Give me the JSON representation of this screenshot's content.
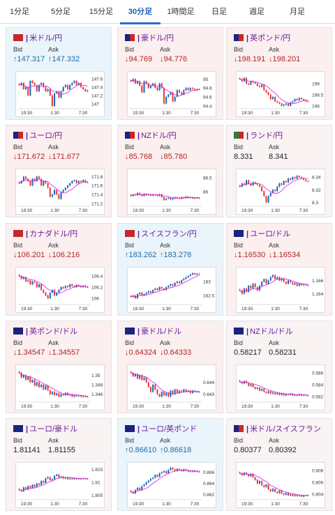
{
  "tabs": [
    "1分足",
    "5分足",
    "15分足",
    "30分足",
    "1時間足",
    "日足",
    "週足",
    "月足"
  ],
  "active_tab": 3,
  "bid_label": "Bid",
  "ask_label": "Ask",
  "colors": {
    "up": "#1a6fa8",
    "down": "#b3261e",
    "bull": "#1565c0",
    "bear": "#e53935",
    "ma": "#d81bd8",
    "tab_active": "#2a6fc9"
  },
  "cards": [
    {
      "pair": "米ドル/円",
      "bid": "147.317",
      "ask": "147.332",
      "dir": "up",
      "flags": [
        "#c62828",
        "#c62828"
      ],
      "chart_data": {
        "type": "candlestick",
        "x_labels": [
          "19:30",
          "1:30",
          "7:30"
        ],
        "y_ticks": [
          "147.6",
          "147.4",
          "147.2",
          "147"
        ],
        "ylim": [
          146.9,
          147.7
        ],
        "closes": [
          147.45,
          147.5,
          147.35,
          147.4,
          147.2,
          147.55,
          147.5,
          147.45,
          147.3,
          147.45,
          147.5,
          147.4,
          147.3,
          147.35,
          147.2,
          146.95,
          147.25,
          147.3,
          147.15,
          147.3,
          147.4,
          147.45,
          147.35,
          147.45,
          147.5,
          147.55,
          147.45,
          147.5,
          147.4,
          147.35,
          147.3,
          147.32
        ]
      }
    },
    {
      "pair": "豪ドル/円",
      "bid": "94.769",
      "ask": "94.776",
      "dir": "down",
      "flags": [
        "#1a237e",
        "#c62828"
      ],
      "chart_data": {
        "type": "candlestick",
        "x_labels": [
          "19:30",
          "1:30",
          "7:30"
        ],
        "y_ticks": [
          "95",
          "94.8",
          "94.6",
          "94.4"
        ],
        "ylim": [
          94.35,
          95.1
        ],
        "closes": [
          94.95,
          95.0,
          94.9,
          94.95,
          94.85,
          94.7,
          94.95,
          94.9,
          94.8,
          94.85,
          94.9,
          94.8,
          94.75,
          94.9,
          94.8,
          94.45,
          94.6,
          94.65,
          94.7,
          94.5,
          94.6,
          94.75,
          94.7,
          94.65,
          94.75,
          94.8,
          94.75,
          94.8,
          94.78,
          94.75,
          94.77,
          94.77
        ]
      }
    },
    {
      "pair": "英ポンド/円",
      "bid": "198.191",
      "ask": "198.201",
      "dir": "down",
      "flags": [
        "#1a237e",
        "#c62828"
      ],
      "chart_data": {
        "type": "candlestick",
        "x_labels": [
          "19:30",
          "1:30",
          "7:30"
        ],
        "y_ticks": [
          "199",
          "198.5",
          "198"
        ],
        "ylim": [
          197.9,
          199.4
        ],
        "closes": [
          199.2,
          199.1,
          199.25,
          199.0,
          198.95,
          199.1,
          199.05,
          199.0,
          198.9,
          198.85,
          198.95,
          198.7,
          198.6,
          198.5,
          198.3,
          198.4,
          198.2,
          198.15,
          198.1,
          198.0,
          198.05,
          198.1,
          198.0,
          198.15,
          198.2,
          198.3,
          198.25,
          198.35,
          198.3,
          198.25,
          198.2,
          198.19
        ]
      }
    },
    {
      "pair": "ユーロ/円",
      "bid": "171.672",
      "ask": "171.677",
      "dir": "down",
      "flags": [
        "#1a237e",
        "#c62828"
      ],
      "chart_data": {
        "type": "candlestick",
        "x_labels": [
          "19:30",
          "1:30",
          "7:30"
        ],
        "y_ticks": [
          "171.8",
          "171.6",
          "171.4",
          "171.2"
        ],
        "ylim": [
          171.15,
          171.9
        ],
        "closes": [
          171.65,
          171.7,
          171.8,
          171.75,
          171.7,
          171.6,
          171.75,
          171.7,
          171.8,
          171.75,
          171.6,
          171.7,
          171.65,
          171.55,
          171.35,
          171.4,
          171.5,
          171.4,
          171.3,
          171.45,
          171.5,
          171.55,
          171.6,
          171.65,
          171.7,
          171.72,
          171.65,
          171.7,
          171.68,
          171.72,
          171.67,
          171.67
        ]
      }
    },
    {
      "pair": "NZドル/円",
      "bid": "85.768",
      "ask": "85.780",
      "dir": "down",
      "flags": [
        "#1a237e",
        "#c62828"
      ],
      "chart_data": {
        "type": "candlestick",
        "x_labels": [
          "19:30",
          "1:30",
          "7:30"
        ],
        "y_ticks": [
          "86.5",
          "86"
        ],
        "ylim": [
          85.5,
          86.7
        ],
        "closes": [
          85.85,
          85.9,
          85.88,
          85.95,
          85.9,
          85.85,
          85.92,
          85.88,
          85.9,
          85.86,
          85.9,
          85.88,
          85.85,
          85.9,
          85.8,
          85.7,
          85.75,
          85.78,
          85.72,
          85.76,
          85.8,
          85.78,
          85.75,
          85.8,
          85.78,
          85.82,
          85.78,
          85.8,
          85.76,
          85.78,
          85.77,
          85.77
        ]
      }
    },
    {
      "pair": "ランド/円",
      "bid": "8.331",
      "ask": "8.341",
      "dir": "flat",
      "flags": [
        "#2e7d32",
        "#c62828"
      ],
      "chart_data": {
        "type": "candlestick",
        "x_labels": [
          "19:30",
          "1:30",
          "7:30"
        ],
        "y_ticks": [
          "8.34",
          "8.32",
          "8.3"
        ],
        "ylim": [
          8.295,
          8.348
        ],
        "closes": [
          8.325,
          8.33,
          8.328,
          8.335,
          8.33,
          8.327,
          8.332,
          8.33,
          8.328,
          8.325,
          8.318,
          8.31,
          8.3,
          8.31,
          8.315,
          8.32,
          8.318,
          8.325,
          8.33,
          8.328,
          8.334,
          8.332,
          8.338,
          8.336,
          8.34,
          8.338,
          8.342,
          8.34,
          8.338,
          8.336,
          8.334,
          8.333
        ]
      }
    },
    {
      "pair": "カナダドル/円",
      "bid": "106.201",
      "ask": "106.216",
      "dir": "down",
      "flags": [
        "#c62828",
        "#c62828"
      ],
      "chart_data": {
        "type": "candlestick",
        "x_labels": [
          "19:30",
          "1:30",
          "7:30"
        ],
        "y_ticks": [
          "106.4",
          "106.2",
          "106"
        ],
        "ylim": [
          105.9,
          106.5
        ],
        "closes": [
          106.4,
          106.35,
          106.38,
          106.3,
          106.32,
          106.25,
          106.3,
          106.28,
          106.2,
          106.25,
          106.15,
          106.1,
          106.05,
          106.0,
          106.1,
          106.15,
          106.05,
          106.1,
          106.15,
          106.2,
          106.18,
          106.22,
          106.2,
          106.25,
          106.22,
          106.2,
          106.24,
          106.22,
          106.2,
          106.22,
          106.2,
          106.2
        ]
      }
    },
    {
      "pair": "スイスフラン/円",
      "bid": "183.262",
      "ask": "183.278",
      "dir": "up",
      "flags": [
        "#c62828",
        "#c62828"
      ],
      "chart_data": {
        "type": "candlestick",
        "x_labels": [
          "19:30",
          "1:30",
          "7:30"
        ],
        "y_ticks": [
          "183",
          "182.5"
        ],
        "ylim": [
          182.2,
          183.4
        ],
        "closes": [
          182.45,
          182.5,
          182.4,
          182.55,
          182.6,
          182.5,
          182.55,
          182.6,
          182.65,
          182.6,
          182.7,
          182.75,
          182.7,
          182.8,
          182.75,
          182.7,
          182.8,
          182.85,
          182.9,
          182.85,
          182.95,
          183.0,
          182.95,
          183.05,
          183.1,
          183.15,
          183.2,
          183.25,
          183.3,
          183.25,
          183.28,
          183.26
        ]
      }
    },
    {
      "pair": "ユーロ/ドル",
      "bid": "1.16530",
      "ask": "1.16534",
      "dir": "down",
      "flags": [
        "#1a237e",
        "#1a237e"
      ],
      "chart_data": {
        "type": "candlestick",
        "x_labels": [
          "19:30",
          "1:30",
          "7:30"
        ],
        "y_ticks": [
          "1.166",
          "1.164"
        ],
        "ylim": [
          1.1625,
          1.1675
        ],
        "closes": [
          1.1645,
          1.164,
          1.1648,
          1.1643,
          1.1652,
          1.1648,
          1.1655,
          1.165,
          1.1645,
          1.1652,
          1.1658,
          1.1662,
          1.1655,
          1.166,
          1.1665,
          1.1668,
          1.1662,
          1.1665,
          1.166,
          1.1663,
          1.1658,
          1.1655,
          1.166,
          1.1657,
          1.1654,
          1.1656,
          1.1652,
          1.1655,
          1.1653,
          1.1654,
          1.1653,
          1.1653
        ]
      }
    },
    {
      "pair": "英ポンド/ドル",
      "bid": "1.34547",
      "ask": "1.34557",
      "dir": "down",
      "flags": [
        "#1a237e",
        "#1a237e"
      ],
      "chart_data": {
        "type": "candlestick",
        "x_labels": [
          "19:30",
          "1:30",
          "7:30"
        ],
        "y_ticks": [
          "1.35",
          "1.348",
          "1.346"
        ],
        "ylim": [
          1.3445,
          1.3515
        ],
        "closes": [
          1.3505,
          1.3495,
          1.35,
          1.349,
          1.3497,
          1.3485,
          1.349,
          1.3478,
          1.3485,
          1.3475,
          1.348,
          1.347,
          1.3478,
          1.3468,
          1.346,
          1.3465,
          1.3458,
          1.3462,
          1.3455,
          1.346,
          1.3458,
          1.3463,
          1.3458,
          1.346,
          1.3455,
          1.3458,
          1.3456,
          1.3457,
          1.3455,
          1.3456,
          1.3455,
          1.3455
        ]
      }
    },
    {
      "pair": "豪ドル/ドル",
      "bid": "0.64324",
      "ask": "0.64333",
      "dir": "down",
      "flags": [
        "#1a237e",
        "#1a237e"
      ],
      "chart_data": {
        "type": "candlestick",
        "x_labels": [
          "19:30",
          "1:30",
          "7:30"
        ],
        "y_ticks": [
          "0.644",
          "0.643"
        ],
        "ylim": [
          0.6424,
          0.6452
        ],
        "closes": [
          0.6448,
          0.6445,
          0.6447,
          0.6443,
          0.6446,
          0.6442,
          0.6444,
          0.644,
          0.6436,
          0.6432,
          0.6438,
          0.6434,
          0.643,
          0.6428,
          0.6432,
          0.6429,
          0.6431,
          0.6428,
          0.6433,
          0.643,
          0.6434,
          0.6431,
          0.6433,
          0.6432,
          0.6434,
          0.6432,
          0.6433,
          0.6431,
          0.6433,
          0.6432,
          0.6432,
          0.6432
        ]
      }
    },
    {
      "pair": "NZドル/ドル",
      "bid": "0.58217",
      "ask": "0.58231",
      "dir": "flat",
      "flags": [
        "#1a237e",
        "#1a237e"
      ],
      "chart_data": {
        "type": "candlestick",
        "x_labels": [
          "19:30",
          "1:30",
          "7:30"
        ],
        "y_ticks": [
          "0.586",
          "0.584",
          "0.582"
        ],
        "ylim": [
          0.5812,
          0.5868
        ],
        "closes": [
          0.5845,
          0.5842,
          0.5846,
          0.5843,
          0.5838,
          0.5841,
          0.5836,
          0.5833,
          0.5835,
          0.583,
          0.5833,
          0.5828,
          0.5826,
          0.5829,
          0.5825,
          0.5827,
          0.5824,
          0.5826,
          0.5823,
          0.5825,
          0.5822,
          0.5824,
          0.5823,
          0.5825,
          0.5822,
          0.5823,
          0.5822,
          0.5824,
          0.5822,
          0.5823,
          0.5822,
          0.5822
        ]
      }
    },
    {
      "pair": "ユーロ/豪ドル",
      "bid": "1.81141",
      "ask": "1.81155",
      "dir": "flat",
      "flags": [
        "#1a237e",
        "#1a237e"
      ],
      "chart_data": {
        "type": "candlestick",
        "x_labels": [
          "19:30",
          "1:30",
          "7:30"
        ],
        "y_ticks": [
          "1.815",
          "1.81",
          "1.805"
        ],
        "ylim": [
          1.8035,
          1.8165
        ],
        "closes": [
          1.807,
          1.8065,
          1.808,
          1.8072,
          1.8085,
          1.8078,
          1.809,
          1.8082,
          1.8095,
          1.809,
          1.8105,
          1.8098,
          1.8115,
          1.812,
          1.8108,
          1.8112,
          1.8125,
          1.813,
          1.8118,
          1.8122,
          1.8115,
          1.8118,
          1.8112,
          1.8116,
          1.8112,
          1.8115,
          1.8113,
          1.8114,
          1.8113,
          1.8115,
          1.8114,
          1.8114
        ]
      }
    },
    {
      "pair": "ユーロ/英ポンド",
      "bid": "0.86610",
      "ask": "0.86618",
      "dir": "up",
      "flags": [
        "#1a237e",
        "#1a237e"
      ],
      "chart_data": {
        "type": "candlestick",
        "x_labels": [
          "19:30",
          "1:30",
          "7:30"
        ],
        "y_ticks": [
          "0.866",
          "0.864",
          "0.862"
        ],
        "ylim": [
          0.8612,
          0.8672
        ],
        "closes": [
          0.8625,
          0.8622,
          0.8628,
          0.8632,
          0.8628,
          0.8635,
          0.8638,
          0.8642,
          0.8645,
          0.8648,
          0.865,
          0.8655,
          0.8652,
          0.8658,
          0.866,
          0.8662,
          0.8658,
          0.8664,
          0.8668,
          0.8665,
          0.8662,
          0.8666,
          0.8664,
          0.8662,
          0.8665,
          0.8663,
          0.8661,
          0.8662,
          0.8661,
          0.8662,
          0.8661,
          0.8661
        ]
      }
    },
    {
      "pair": "米ドル/スイスフラン",
      "bid": "0.80377",
      "ask": "0.80392",
      "dir": "flat",
      "flags": [
        "#1a237e",
        "#c62828"
      ],
      "chart_data": {
        "type": "candlestick",
        "x_labels": [
          "19:30",
          "1:30",
          "7:30"
        ],
        "y_ticks": [
          "0.808",
          "0.806",
          "0.804"
        ],
        "ylim": [
          0.8032,
          0.8088
        ],
        "closes": [
          0.8075,
          0.8072,
          0.8076,
          0.8073,
          0.807,
          0.8074,
          0.8068,
          0.8064,
          0.8058,
          0.8062,
          0.8055,
          0.8052,
          0.8056,
          0.8048,
          0.8045,
          0.8049,
          0.8044,
          0.8042,
          0.8046,
          0.8041,
          0.8039,
          0.8042,
          0.8038,
          0.804,
          0.8037,
          0.8039,
          0.8037,
          0.8038,
          0.8036,
          0.8038,
          0.8038,
          0.8038
        ]
      }
    }
  ]
}
